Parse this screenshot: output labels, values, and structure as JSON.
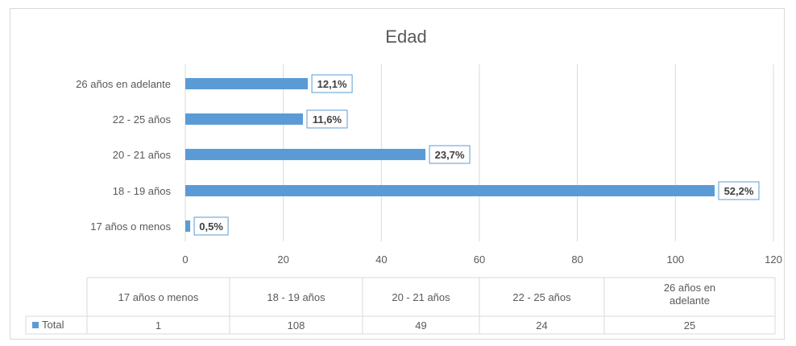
{
  "chart_data": {
    "type": "bar",
    "orientation": "horizontal",
    "title": "Edad",
    "categories": [
      "17 años o menos",
      "18 - 19 años",
      "20 - 21 años",
      "22 - 25 años",
      "26 años en adelante"
    ],
    "table_headers": [
      "17 años o menos",
      "18 - 19 años",
      "20 - 21 años",
      "22 - 25 años",
      "26 años en adelante"
    ],
    "series": [
      {
        "name": "Total",
        "values": [
          1,
          108,
          49,
          24,
          25
        ],
        "data_labels": [
          "0,5%",
          "52,2%",
          "23,7%",
          "11,6%",
          "12,1%"
        ],
        "color": "#5b9bd5"
      }
    ],
    "xticks": [
      "0",
      "20",
      "40",
      "60",
      "80",
      "100",
      "120"
    ],
    "xlim": [
      0,
      120
    ],
    "grid": true,
    "legend": "data-table"
  }
}
